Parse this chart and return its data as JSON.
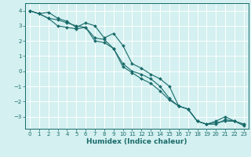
{
  "title": "",
  "xlabel": "Humidex (Indice chaleur)",
  "ylabel": "",
  "bg_color": "#d4f0f0",
  "grid_color": "#ffffff",
  "line_color": "#1a6b6b",
  "xlim": [
    -0.5,
    23.5
  ],
  "ylim": [
    -3.8,
    4.5
  ],
  "yticks": [
    -3,
    -2,
    -1,
    0,
    1,
    2,
    3,
    4
  ],
  "xticks": [
    0,
    1,
    2,
    3,
    4,
    5,
    6,
    7,
    8,
    9,
    10,
    11,
    12,
    13,
    14,
    15,
    16,
    17,
    18,
    19,
    20,
    21,
    22,
    23
  ],
  "series1_x": [
    0,
    1,
    2,
    3,
    4,
    5,
    6,
    7,
    8,
    9,
    10,
    11,
    12,
    13,
    14,
    15,
    16,
    17,
    18,
    19,
    20,
    21,
    22,
    23
  ],
  "series1_y": [
    4.0,
    3.8,
    3.9,
    3.5,
    3.3,
    2.9,
    3.2,
    3.0,
    2.2,
    2.5,
    1.7,
    0.5,
    0.2,
    -0.2,
    -0.5,
    -1.0,
    -2.3,
    -2.5,
    -3.3,
    -3.5,
    -3.3,
    -3.0,
    -3.3,
    -3.5
  ],
  "series2_x": [
    0,
    1,
    2,
    3,
    4,
    5,
    6,
    7,
    8,
    9,
    10,
    11,
    12,
    13,
    14,
    15,
    16,
    17,
    18,
    19,
    20,
    21,
    22,
    23
  ],
  "series2_y": [
    4.0,
    3.8,
    3.5,
    3.0,
    2.9,
    2.8,
    2.9,
    2.2,
    2.1,
    1.5,
    0.5,
    0.0,
    -0.2,
    -0.5,
    -1.0,
    -1.8,
    -2.3,
    -2.5,
    -3.3,
    -3.5,
    -3.4,
    -3.3,
    -3.3,
    -3.5
  ],
  "series3_x": [
    0,
    1,
    2,
    3,
    4,
    5,
    6,
    7,
    8,
    9,
    10,
    11,
    12,
    13,
    14,
    15,
    16,
    17,
    18,
    19,
    20,
    21,
    22,
    23
  ],
  "series3_y": [
    4.0,
    3.8,
    3.5,
    3.4,
    3.2,
    3.0,
    2.9,
    2.0,
    1.9,
    1.5,
    0.3,
    -0.1,
    -0.5,
    -0.8,
    -1.3,
    -1.9,
    -2.3,
    -2.5,
    -3.3,
    -3.5,
    -3.5,
    -3.2,
    -3.3,
    -3.6
  ],
  "tick_fontsize": 5.0,
  "xlabel_fontsize": 6.5,
  "marker_size": 2.0,
  "line_width": 0.8
}
